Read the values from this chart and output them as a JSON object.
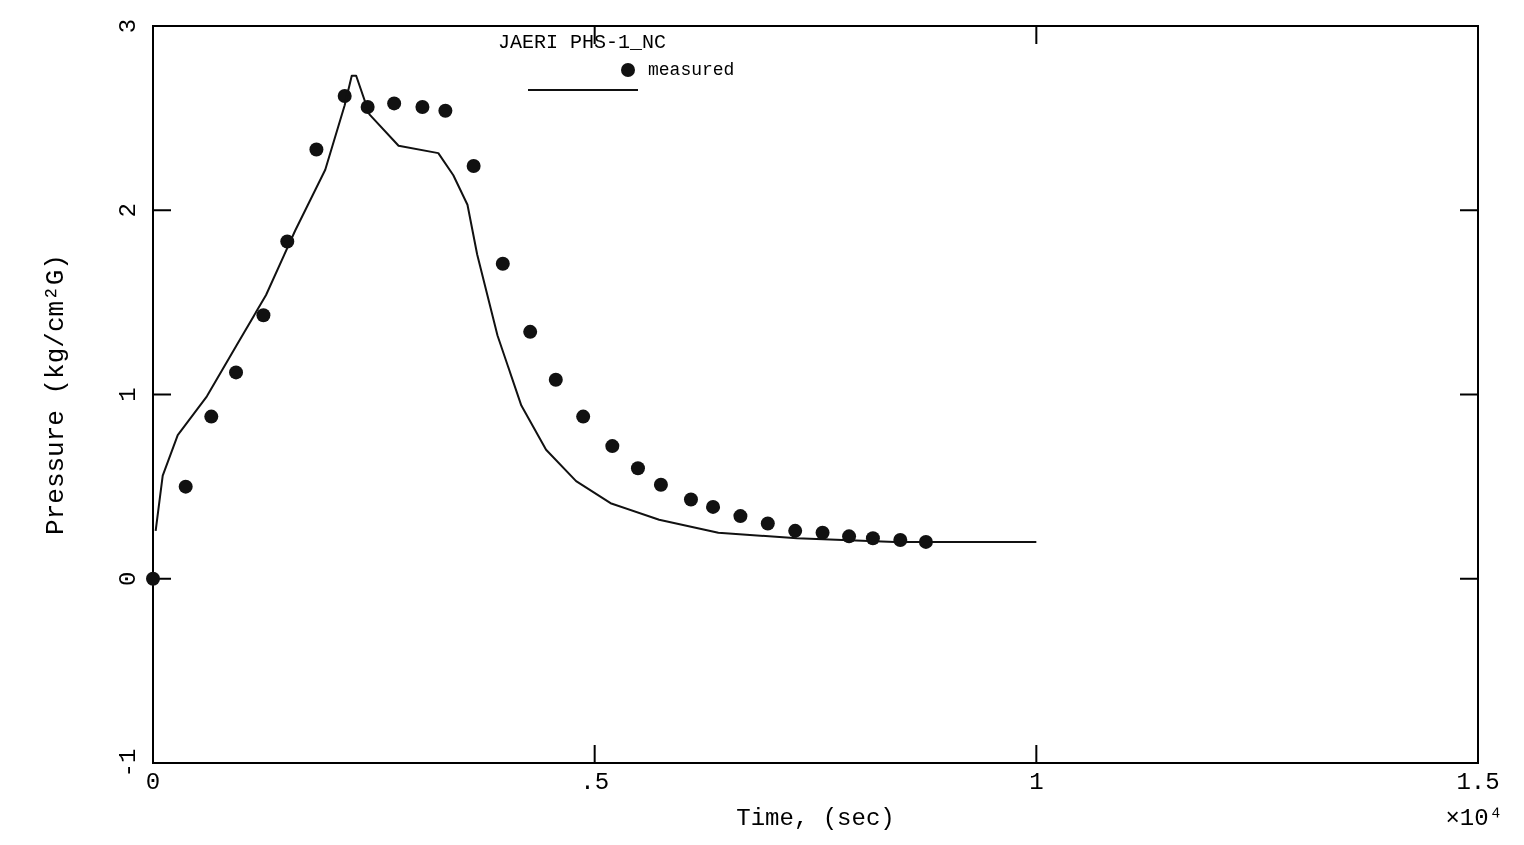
{
  "chart_data": {
    "type": "scatter",
    "xlabel": "Time, (sec)",
    "ylabel": "Pressure (kg/cm²G)",
    "legend_title": "JAERI PHS-1_NC",
    "legend": "top",
    "grid": false,
    "xlim": [
      0,
      1.5
    ],
    "xticks": [
      0,
      {
        "value": 0.5,
        "label": ".5"
      },
      1,
      1.5
    ],
    "ylim": [
      -1,
      3
    ],
    "yticks": [
      -1,
      0,
      1,
      2,
      3
    ],
    "annotations": [
      "×10⁴"
    ],
    "series": [
      {
        "name": "measured",
        "type": "scatter",
        "marker": "circle",
        "color": "#111111",
        "x": [
          0,
          0.037,
          0.066,
          0.094,
          0.125,
          0.152,
          0.185,
          0.217,
          0.243,
          0.273,
          0.305,
          0.331,
          0.363,
          0.396,
          0.427,
          0.456,
          0.487,
          0.52,
          0.549,
          0.575,
          0.609,
          0.634,
          0.665,
          0.696,
          0.727,
          0.758,
          0.788,
          0.815,
          0.846,
          0.875
        ],
        "values": [
          0,
          0.5,
          0.88,
          1.12,
          1.43,
          1.83,
          2.33,
          2.62,
          2.56,
          2.58,
          2.56,
          2.54,
          2.24,
          1.71,
          1.34,
          1.08,
          0.88,
          0.72,
          0.6,
          0.51,
          0.43,
          0.39,
          0.34,
          0.3,
          0.26,
          0.25,
          0.23,
          0.22,
          0.21,
          0.2
        ]
      },
      {
        "type": "line",
        "marker": "none",
        "line_style": "solid",
        "color": "#111111",
        "x": [
          0.003,
          0.011,
          0.028,
          0.061,
          0.095,
          0.128,
          0.161,
          0.195,
          0.217,
          0.225,
          0.23,
          0.245,
          0.278,
          0.323,
          0.34,
          0.356,
          0.367,
          0.39,
          0.417,
          0.445,
          0.479,
          0.518,
          0.573,
          0.64,
          0.729,
          0.84,
          1.0
        ],
        "values": [
          0.26,
          0.56,
          0.78,
          0.99,
          1.27,
          1.54,
          1.89,
          2.22,
          2.57,
          2.73,
          2.73,
          2.52,
          2.35,
          2.31,
          2.19,
          2.03,
          1.76,
          1.32,
          0.94,
          0.7,
          0.53,
          0.41,
          0.32,
          0.25,
          0.22,
          0.2,
          0.2
        ]
      }
    ]
  }
}
